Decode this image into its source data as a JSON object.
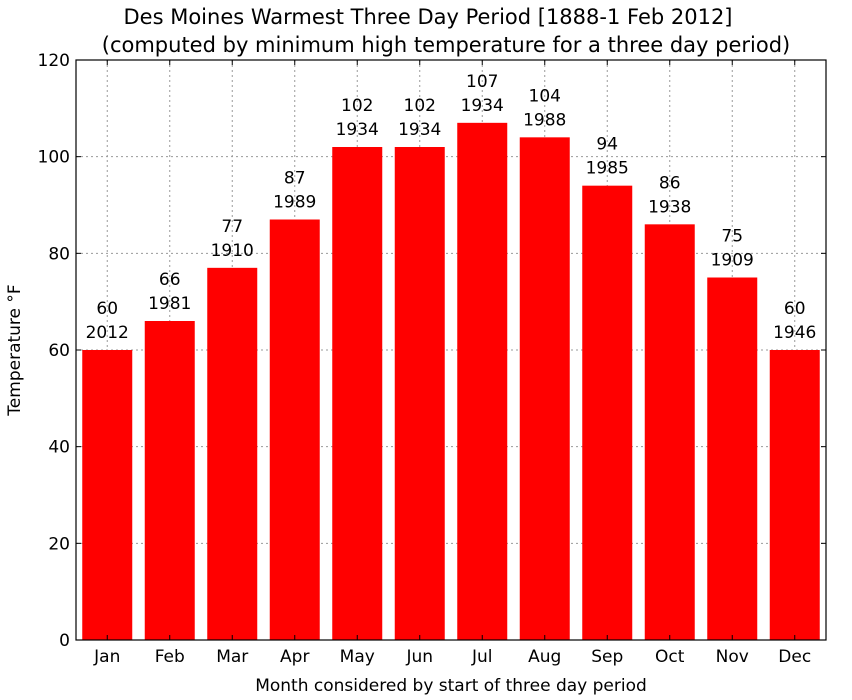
{
  "chart_data": {
    "type": "bar",
    "title": "Des Moines Warmest Three Day Period [1888-1 Feb 2012]",
    "subtitle": "(computed by minimum high temperature for a three day period)",
    "xlabel": "Month considered by start of three day period",
    "ylabel": "Temperature °F",
    "categories": [
      "Jan",
      "Feb",
      "Mar",
      "Apr",
      "May",
      "Jun",
      "Jul",
      "Aug",
      "Sep",
      "Oct",
      "Nov",
      "Dec"
    ],
    "values": [
      60,
      66,
      77,
      87,
      102,
      102,
      107,
      104,
      94,
      86,
      75,
      60
    ],
    "years": [
      "2012",
      "1981",
      "1910",
      "1989",
      "1934",
      "1934",
      "1934",
      "1988",
      "1985",
      "1938",
      "1909",
      "1946"
    ],
    "ylim": [
      0,
      120
    ],
    "yticks": [
      0,
      20,
      40,
      60,
      80,
      100,
      120
    ],
    "grid": true,
    "bar_color": "#ff0000"
  }
}
